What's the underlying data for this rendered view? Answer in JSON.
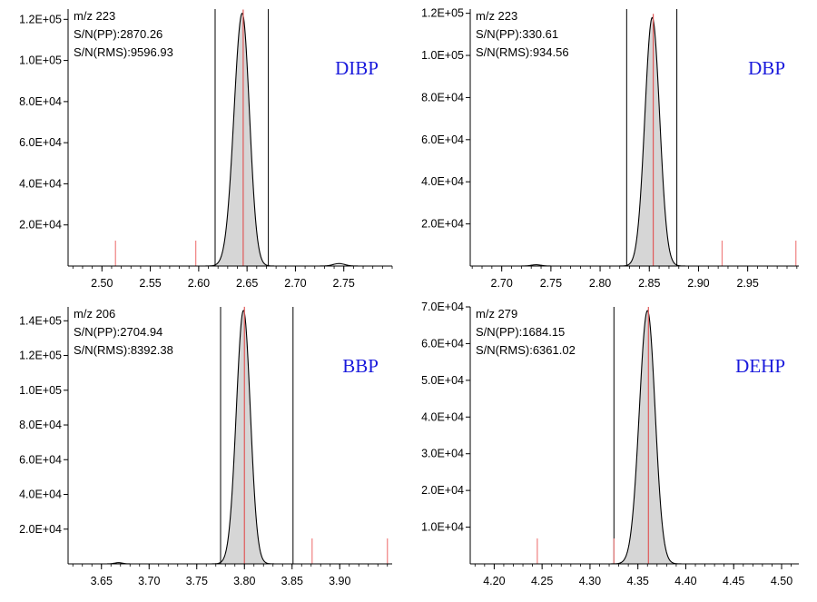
{
  "chart_data": [
    {
      "type": "line",
      "compound": "DIBP",
      "info": [
        "m/z 223",
        "S/N(PP):2870.26",
        "S/N(RMS):9596.93"
      ],
      "xlim": [
        2.465,
        2.8
      ],
      "ylim": [
        0,
        125000
      ],
      "xticks": [
        2.5,
        2.55,
        2.6,
        2.65,
        2.7,
        2.75
      ],
      "xtick_labels": [
        "2.50",
        "2.55",
        "2.60",
        "2.65",
        "2.70",
        "2.75"
      ],
      "yticks": [
        20000,
        40000,
        60000,
        80000,
        100000,
        120000
      ],
      "ytick_labels": [
        "2.0E+04",
        "4.0E+04",
        "6.0E+04",
        "8.0E+04",
        "1.0E+05",
        "1.2E+05"
      ],
      "peak": {
        "apex": 2.645,
        "height": 123000,
        "sigma_left": 0.0085,
        "sigma_right": 0.0075
      },
      "minor_peaks": [
        {
          "apex": 2.745,
          "height": 1200,
          "sigma": 0.006
        }
      ],
      "integration_bounds": [
        2.617,
        2.672
      ],
      "peak_marker": 2.646,
      "noise_markers": [
        2.514,
        2.597
      ]
    },
    {
      "type": "line",
      "compound": "DBP",
      "info": [
        "m/z 223",
        "S/N(PP):330.61",
        "S/N(RMS):934.56"
      ],
      "xlim": [
        2.668,
        3.002
      ],
      "ylim": [
        0,
        122000
      ],
      "xticks": [
        2.7,
        2.75,
        2.8,
        2.85,
        2.9,
        2.95
      ],
      "xtick_labels": [
        "2.70",
        "2.75",
        "2.80",
        "2.85",
        "2.90",
        "2.95"
      ],
      "yticks": [
        20000,
        40000,
        60000,
        80000,
        100000,
        120000
      ],
      "ytick_labels": [
        "2.0E+04",
        "4.0E+04",
        "6.0E+04",
        "8.0E+04",
        "1.0E+05",
        "1.2E+05"
      ],
      "peak": {
        "apex": 2.853,
        "height": 118000,
        "sigma_left": 0.0075,
        "sigma_right": 0.0075
      },
      "minor_peaks": [
        {
          "apex": 2.735,
          "height": 600,
          "sigma": 0.005
        }
      ],
      "integration_bounds": [
        2.827,
        2.878
      ],
      "peak_marker": 2.854,
      "noise_markers": [
        2.924,
        2.999
      ]
    },
    {
      "type": "line",
      "compound": "BBP",
      "info": [
        "m/z 206",
        "S/N(PP):2704.94",
        "S/N(RMS):8392.38"
      ],
      "xlim": [
        3.615,
        3.955
      ],
      "ylim": [
        0,
        148000
      ],
      "xticks": [
        3.65,
        3.7,
        3.75,
        3.8,
        3.85,
        3.9
      ],
      "xtick_labels": [
        "3.65",
        "3.70",
        "3.75",
        "3.80",
        "3.85",
        "3.90"
      ],
      "yticks": [
        20000,
        40000,
        60000,
        80000,
        100000,
        120000,
        140000
      ],
      "ytick_labels": [
        "2.0E+04",
        "4.0E+04",
        "6.0E+04",
        "8.0E+04",
        "1.0E+05",
        "1.2E+05",
        "1.4E+05"
      ],
      "peak": {
        "apex": 3.799,
        "height": 146000,
        "sigma_left": 0.0075,
        "sigma_right": 0.0072
      },
      "minor_peaks": [
        {
          "apex": 3.668,
          "height": 700,
          "sigma": 0.004
        }
      ],
      "integration_bounds": [
        3.775,
        3.851
      ],
      "peak_marker": 3.8,
      "noise_markers": [
        3.871,
        3.95
      ]
    },
    {
      "type": "line",
      "compound": "DEHP",
      "info": [
        "m/z 279",
        "S/N(PP):1684.15",
        "S/N(RMS):6361.02"
      ],
      "xlim": [
        4.175,
        4.518
      ],
      "ylim": [
        0,
        70000
      ],
      "xticks": [
        4.2,
        4.25,
        4.3,
        4.35,
        4.4,
        4.45,
        4.5
      ],
      "xtick_labels": [
        "4.20",
        "4.25",
        "4.30",
        "4.35",
        "4.40",
        "4.45",
        "4.50"
      ],
      "yticks": [
        10000,
        20000,
        30000,
        40000,
        50000,
        60000,
        70000
      ],
      "ytick_labels": [
        "1.0E+04",
        "2.0E+04",
        "3.0E+04",
        "4.0E+04",
        "5.0E+04",
        "6.0E+04",
        "7.0E+04"
      ],
      "peak": {
        "apex": 4.36,
        "height": 69000,
        "sigma_left": 0.0085,
        "sigma_right": 0.008
      },
      "minor_peaks": [],
      "integration_bounds": [
        4.325
      ],
      "peak_marker": 4.361,
      "noise_markers": [
        4.245,
        4.325
      ]
    }
  ]
}
